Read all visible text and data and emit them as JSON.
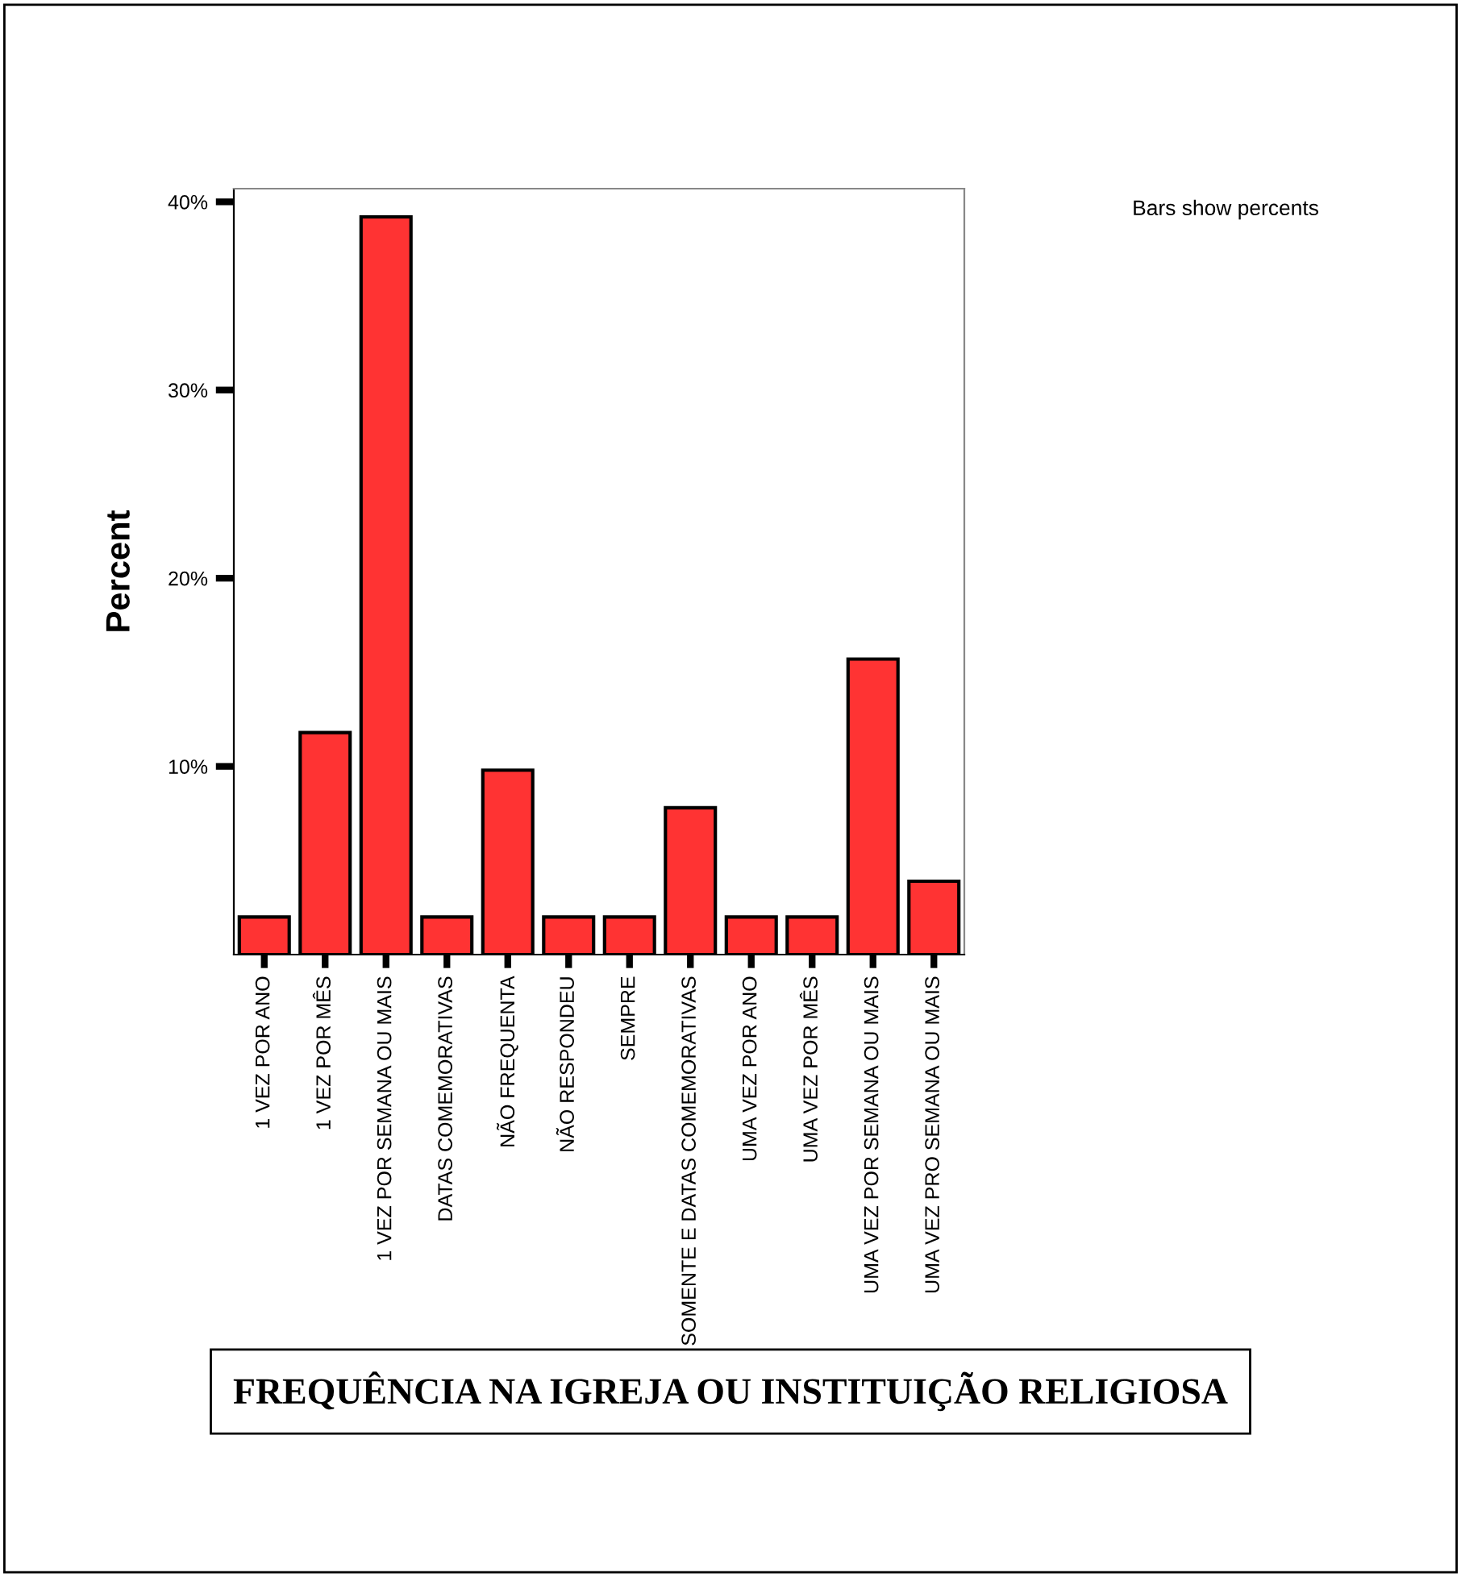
{
  "chart_data": {
    "type": "bar",
    "title": "FREQUÊNCIA NA IGREJA OU INSTITUIÇÃO RELIGIOSA",
    "ylabel": "Percent",
    "categories": [
      "1 VEZ POR ANO",
      "1 VEZ POR MÊS",
      "1 VEZ POR SEMANA OU MAIS",
      "DATAS COMEMORATIVAS",
      "NÃO FREQUENTA",
      "NÃO RESPONDEU",
      "SEMPRE",
      "SOMENTE E DATAS COMEMORATIVAS",
      "UMA VEZ POR ANO",
      "UMA VEZ POR MÊS",
      "UMA VEZ POR SEMANA OU MAIS",
      "UMA VEZ PRO SEMANA OU MAIS"
    ],
    "values": [
      2.0,
      11.8,
      39.2,
      2.0,
      9.8,
      2.0,
      2.0,
      7.8,
      2.0,
      2.0,
      15.7,
      3.9
    ],
    "color": "#ff3333",
    "ylim": [
      0,
      40.7
    ],
    "yticks": [
      {
        "value": 10,
        "label": "10%"
      },
      {
        "value": 20,
        "label": "20%"
      },
      {
        "value": 30,
        "label": "30%"
      },
      {
        "value": 40,
        "label": "40%"
      }
    ],
    "annotations": [
      "Bars show percents"
    ],
    "grid": false,
    "legend": false
  }
}
